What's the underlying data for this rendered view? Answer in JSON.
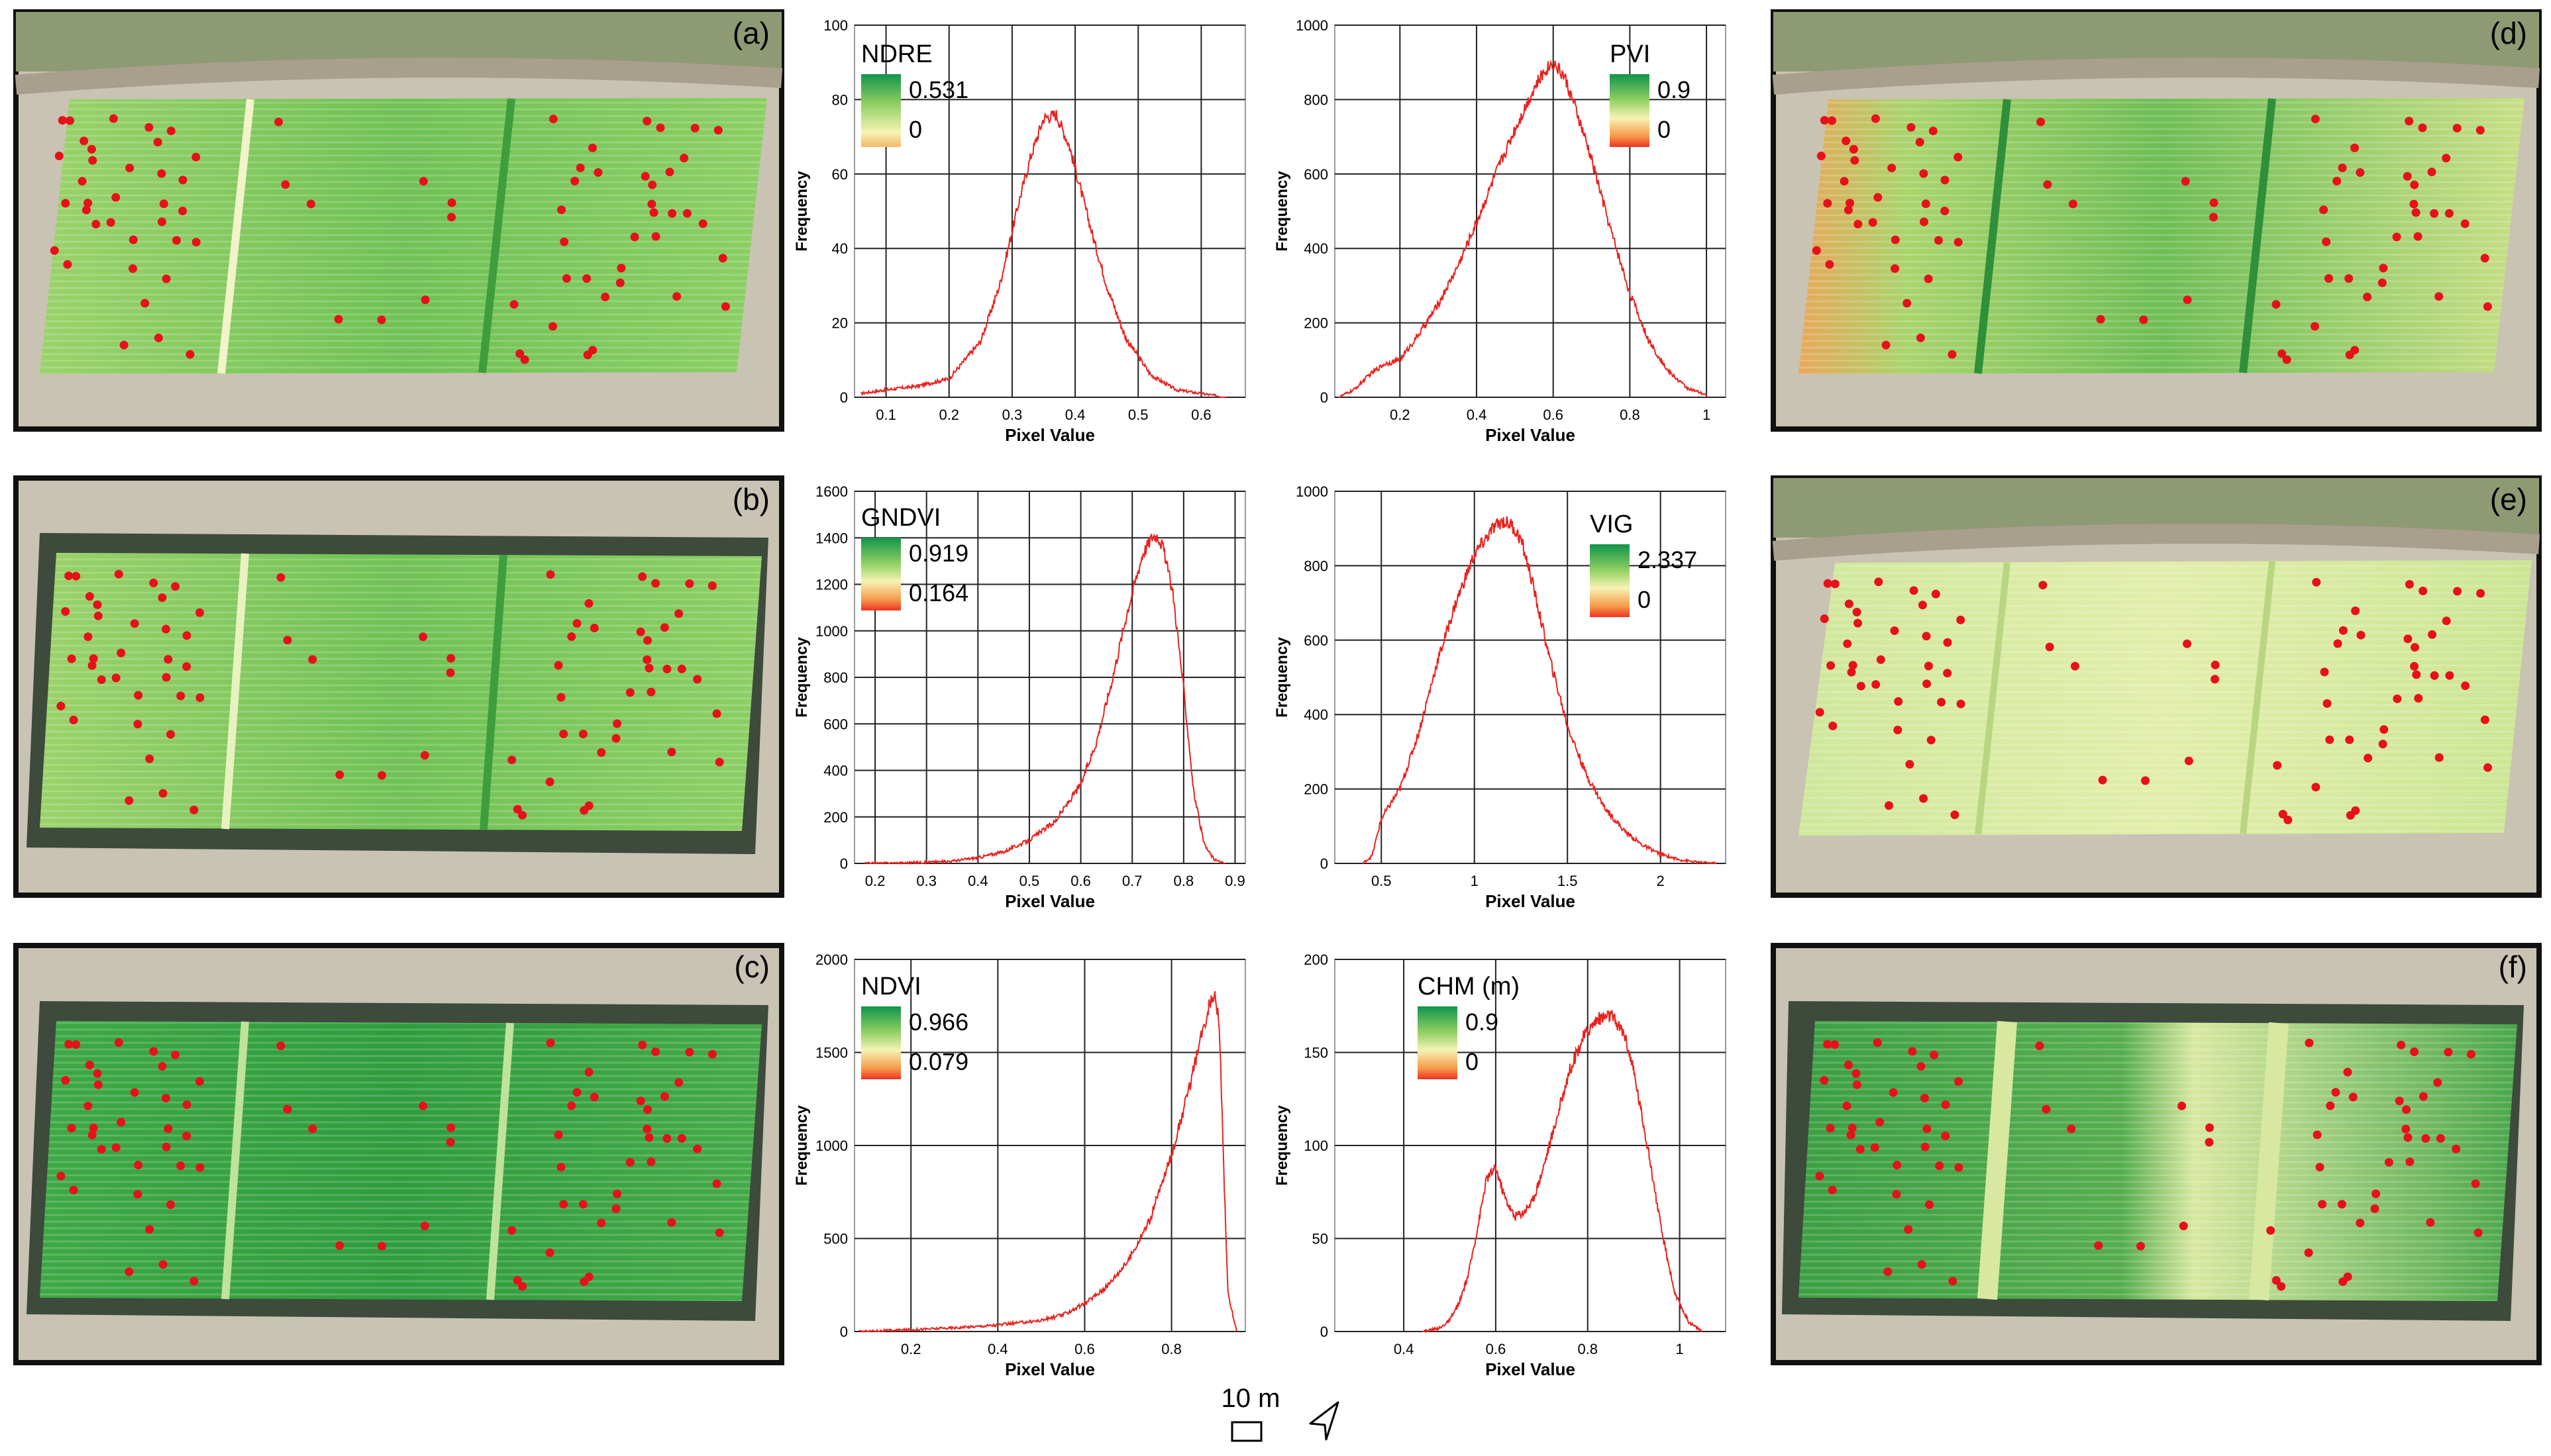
{
  "figure": {
    "panel_labels": [
      "(a)",
      "(b)",
      "(c)",
      "(d)",
      "(e)",
      "(f)"
    ],
    "scale_label": "10 m",
    "north_arrow": "north-arrow-icon"
  },
  "colors": {
    "hist_line": "#e8221e",
    "legend_green": "#1d9a3a",
    "legend_mid": "#f4f2b0",
    "legend_red": "#ee4a2a",
    "plot_dot": "#e8101a",
    "frame": "#111111"
  },
  "chart_data": [
    {
      "type": "line",
      "title": "NDRE",
      "legend": {
        "max": "0.531",
        "min": "0",
        "style": "yellow"
      },
      "xlabel": "Pixel Value",
      "ylabel": "Frequency",
      "xlim": [
        0.05,
        0.67
      ],
      "ylim": [
        0,
        100
      ],
      "xticks": [
        0.1,
        0.2,
        0.3,
        0.4,
        0.5,
        0.6
      ],
      "xtick_labels": [
        "0.1",
        "0.2",
        "0.3",
        "0.4",
        "0.5",
        "0.6"
      ],
      "yticks": [
        0,
        20,
        40,
        60,
        80,
        100
      ],
      "ytick_labels": [
        "0",
        "20",
        "40",
        "60",
        "80",
        "100"
      ],
      "x": [
        0.06,
        0.1,
        0.15,
        0.2,
        0.25,
        0.28,
        0.31,
        0.33,
        0.35,
        0.37,
        0.39,
        0.41,
        0.43,
        0.45,
        0.48,
        0.52,
        0.56,
        0.6,
        0.64
      ],
      "y": [
        1,
        2,
        3,
        5,
        15,
        30,
        52,
        65,
        75,
        76,
        68,
        55,
        42,
        30,
        16,
        6,
        2,
        1,
        0
      ]
    },
    {
      "type": "line",
      "title": "PVI",
      "legend": {
        "max": "0.9",
        "min": "0",
        "style": "red"
      },
      "xlabel": "Pixel Value",
      "ylabel": "Frequency",
      "xlim": [
        0.03,
        1.05
      ],
      "ylim": [
        0,
        1000
      ],
      "xticks": [
        0.2,
        0.4,
        0.6,
        0.8,
        1.0
      ],
      "xtick_labels": [
        "0.2",
        "0.4",
        "0.6",
        "0.8",
        "1"
      ],
      "yticks": [
        0,
        200,
        400,
        600,
        800,
        1000
      ],
      "ytick_labels": [
        "0",
        "200",
        "400",
        "600",
        "800",
        "1000"
      ],
      "x": [
        0.04,
        0.08,
        0.12,
        0.16,
        0.2,
        0.25,
        0.3,
        0.35,
        0.4,
        0.45,
        0.5,
        0.55,
        0.58,
        0.6,
        0.63,
        0.66,
        0.7,
        0.75,
        0.8,
        0.85,
        0.9,
        0.95,
        1.0
      ],
      "y": [
        0,
        20,
        60,
        90,
        100,
        170,
        250,
        350,
        470,
        600,
        720,
        830,
        880,
        900,
        860,
        770,
        640,
        450,
        280,
        150,
        70,
        25,
        5
      ]
    },
    {
      "type": "line",
      "title": "GNDVI",
      "legend": {
        "max": "0.919",
        "min": "0.164",
        "style": "red"
      },
      "xlabel": "Pixel Value",
      "ylabel": "Frequency",
      "xlim": [
        0.16,
        0.92
      ],
      "ylim": [
        0,
        1600
      ],
      "xticks": [
        0.2,
        0.3,
        0.4,
        0.5,
        0.6,
        0.7,
        0.8,
        0.9
      ],
      "xtick_labels": [
        "0.2",
        "0.3",
        "0.4",
        "0.5",
        "0.6",
        "0.7",
        "0.8",
        "0.9"
      ],
      "yticks": [
        0,
        200,
        400,
        600,
        800,
        1000,
        1200,
        1400,
        1600
      ],
      "ytick_labels": [
        "0",
        "200",
        "400",
        "600",
        "800",
        "1000",
        "1200",
        "1400",
        "1600"
      ],
      "x": [
        0.18,
        0.25,
        0.3,
        0.35,
        0.4,
        0.45,
        0.5,
        0.55,
        0.6,
        0.63,
        0.66,
        0.69,
        0.72,
        0.74,
        0.75,
        0.76,
        0.78,
        0.8,
        0.82,
        0.84,
        0.86,
        0.88
      ],
      "y": [
        0,
        2,
        5,
        10,
        25,
        50,
        100,
        180,
        340,
        520,
        780,
        1080,
        1330,
        1410,
        1410,
        1360,
        1150,
        750,
        300,
        80,
        15,
        0
      ]
    },
    {
      "type": "line",
      "title": "VIG",
      "legend": {
        "max": "2.337",
        "min": "0",
        "style": "red"
      },
      "xlabel": "Pixel Value",
      "ylabel": "Frequency",
      "xlim": [
        0.25,
        2.35
      ],
      "ylim": [
        0,
        1000
      ],
      "xticks": [
        0.5,
        1.0,
        1.5,
        2.0
      ],
      "xtick_labels": [
        "0.5",
        "1",
        "1.5",
        "2"
      ],
      "yticks": [
        0,
        200,
        400,
        600,
        800,
        1000
      ],
      "ytick_labels": [
        "0",
        "200",
        "400",
        "600",
        "800",
        "1000"
      ],
      "x": [
        0.4,
        0.45,
        0.48,
        0.5,
        0.55,
        0.6,
        0.7,
        0.8,
        0.9,
        1.0,
        1.1,
        1.15,
        1.2,
        1.25,
        1.3,
        1.4,
        1.5,
        1.6,
        1.7,
        1.8,
        1.9,
        2.0,
        2.1,
        2.2,
        2.3
      ],
      "y": [
        0,
        20,
        80,
        120,
        160,
        200,
        350,
        540,
        700,
        830,
        900,
        920,
        910,
        870,
        780,
        560,
        370,
        240,
        150,
        90,
        50,
        25,
        10,
        3,
        0
      ]
    },
    {
      "type": "line",
      "title": "NDVI",
      "legend": {
        "max": "0.966",
        "min": "0.079",
        "style": "red"
      },
      "xlabel": "Pixel Value",
      "ylabel": "Frequency",
      "xlim": [
        0.07,
        0.97
      ],
      "ylim": [
        0,
        2000
      ],
      "xticks": [
        0.2,
        0.4,
        0.6,
        0.8
      ],
      "xtick_labels": [
        "0.2",
        "0.4",
        "0.6",
        "0.8"
      ],
      "yticks": [
        0,
        500,
        1000,
        1500,
        2000
      ],
      "ytick_labels": [
        "0",
        "500",
        "1000",
        "1500",
        "2000"
      ],
      "x": [
        0.08,
        0.2,
        0.3,
        0.4,
        0.5,
        0.55,
        0.6,
        0.65,
        0.7,
        0.75,
        0.8,
        0.84,
        0.87,
        0.89,
        0.9,
        0.91,
        0.92,
        0.93,
        0.95
      ],
      "y": [
        0,
        10,
        20,
        35,
        60,
        90,
        150,
        240,
        380,
        600,
        950,
        1300,
        1600,
        1780,
        1820,
        1650,
        900,
        200,
        0
      ]
    },
    {
      "type": "line",
      "title": "CHM (m)",
      "legend": {
        "max": "0.9",
        "min": "0",
        "style": "red"
      },
      "xlabel": "Pixel Value",
      "ylabel": "Frequency",
      "xlim": [
        0.25,
        1.1
      ],
      "ylim": [
        0,
        200
      ],
      "xticks": [
        0.4,
        0.6,
        0.8,
        1.0
      ],
      "xtick_labels": [
        "0.4",
        "0.6",
        "0.8",
        "1"
      ],
      "yticks": [
        0,
        50,
        100,
        150,
        200
      ],
      "ytick_labels": [
        "0",
        "50",
        "100",
        "150",
        "200"
      ],
      "x": [
        0.44,
        0.48,
        0.5,
        0.52,
        0.54,
        0.56,
        0.58,
        0.6,
        0.62,
        0.64,
        0.66,
        0.68,
        0.7,
        0.73,
        0.76,
        0.79,
        0.82,
        0.85,
        0.88,
        0.9,
        0.93,
        0.96,
        0.99,
        1.02,
        1.05
      ],
      "y": [
        0,
        2,
        6,
        15,
        30,
        55,
        82,
        88,
        72,
        62,
        64,
        70,
        85,
        112,
        140,
        158,
        168,
        170,
        160,
        140,
        100,
        55,
        20,
        5,
        0
      ]
    }
  ]
}
